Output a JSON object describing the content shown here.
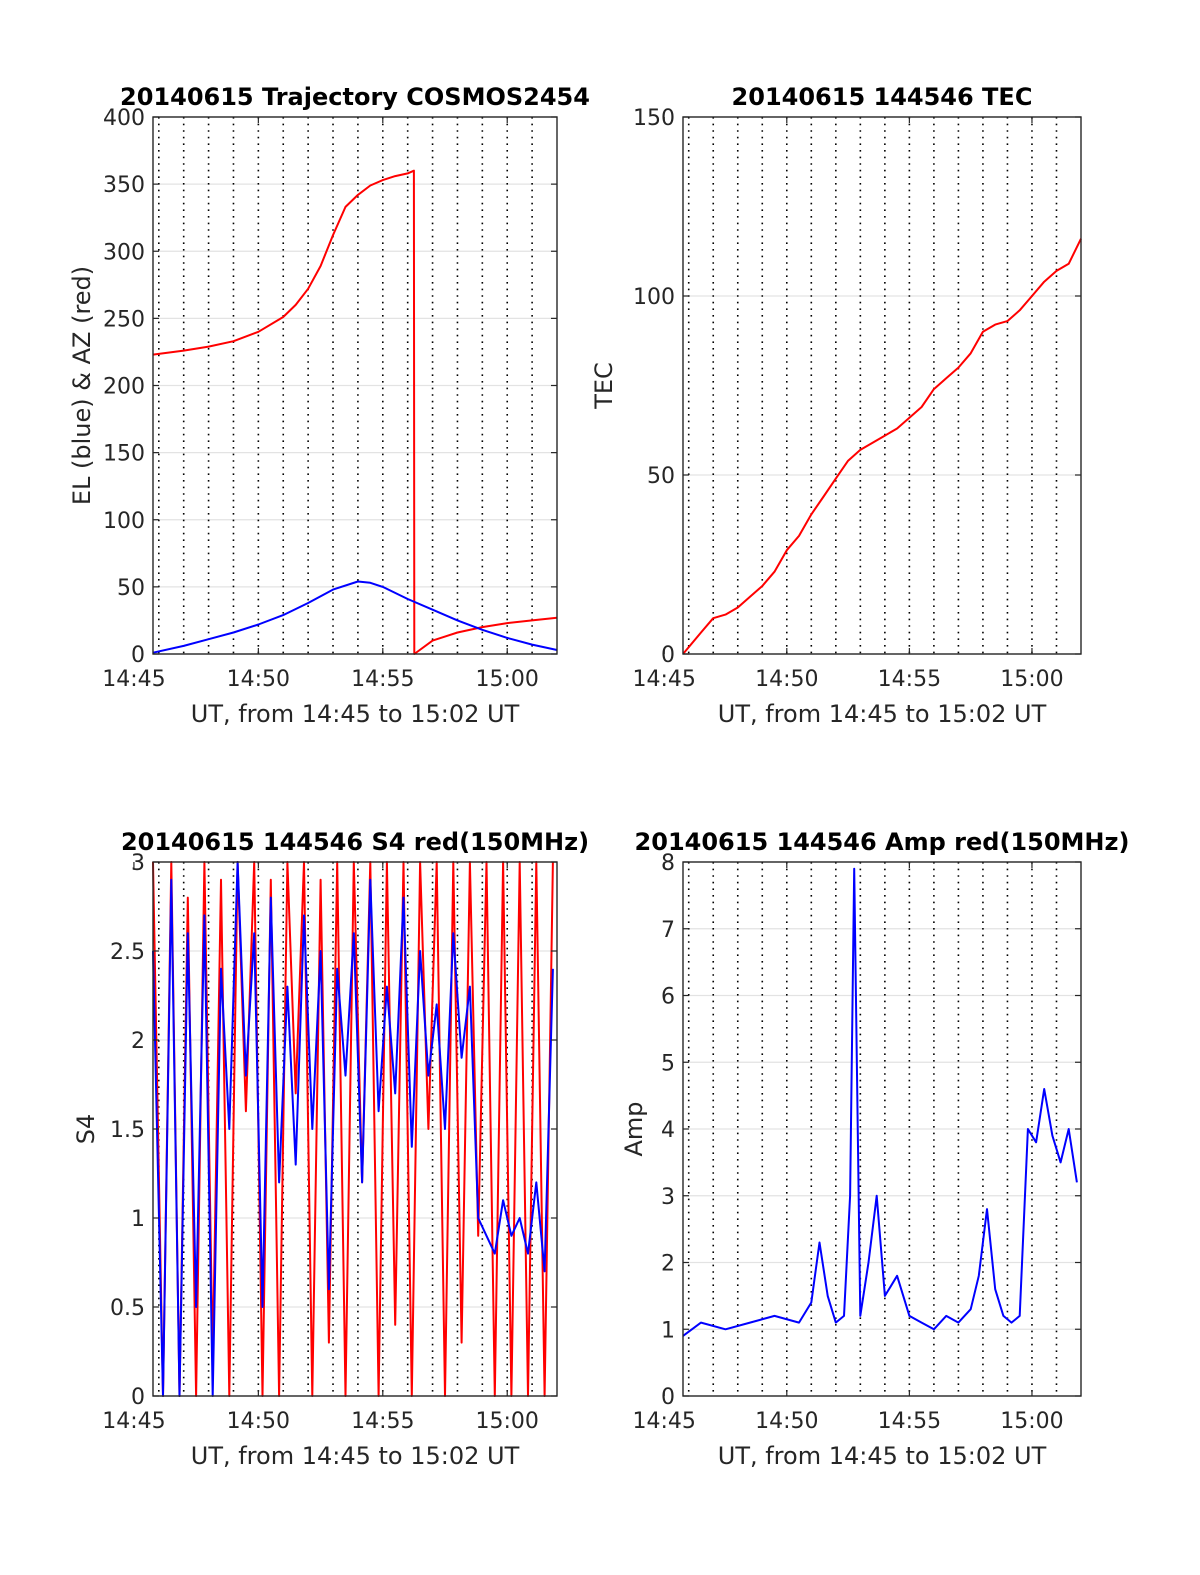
{
  "chart_data": [
    {
      "type": "line",
      "title": "20140615 Trajectory COSMOS2454",
      "xlabel": "UT, from 14:45 to 15:02 UT",
      "ylabel": "EL (blue) & AZ (red)",
      "xlim": [
        "14:45:46",
        "15:02:00"
      ],
      "ylim": [
        0,
        400
      ],
      "xticks": [
        "14:45",
        "14:50",
        "14:55",
        "15:00"
      ],
      "yticks": [
        0,
        50,
        100,
        150,
        200,
        250,
        300,
        350,
        400
      ],
      "grid": true,
      "series": [
        {
          "color": "#ff0000",
          "x": [
            "14:45:46",
            "14:47:00",
            "14:48:00",
            "14:49:00",
            "14:50:00",
            "14:51:00",
            "14:51:30",
            "14:52:00",
            "14:52:30",
            "14:53:00",
            "14:53:30",
            "14:54:00",
            "14:54:30",
            "14:55:00",
            "14:55:30",
            "14:56:00",
            "14:56:15",
            "14:56:16",
            "14:57:00",
            "14:58:00",
            "14:59:00",
            "15:00:00",
            "15:01:00",
            "15:02:00"
          ],
          "values": [
            223,
            226,
            229,
            233,
            240,
            251,
            260,
            272,
            289,
            312,
            333,
            342,
            349,
            353,
            356,
            358,
            360,
            0,
            10,
            16,
            20,
            23,
            25,
            27
          ]
        },
        {
          "color": "#0000ff",
          "x": [
            "14:45:46",
            "14:47:00",
            "14:48:00",
            "14:49:00",
            "14:50:00",
            "14:51:00",
            "14:52:00",
            "14:53:00",
            "14:54:00",
            "14:54:30",
            "14:55:00",
            "14:56:00",
            "14:57:00",
            "14:58:00",
            "14:59:00",
            "15:00:00",
            "15:01:00",
            "15:02:00"
          ],
          "values": [
            1,
            6,
            11,
            16,
            22,
            29,
            38,
            48,
            54,
            53,
            50,
            41,
            33,
            25,
            18,
            12,
            7,
            3
          ]
        }
      ]
    },
    {
      "type": "line",
      "title": "20140615 144546 TEC",
      "xlabel": "UT, from 14:45 to 15:02 UT",
      "ylabel": "TEC",
      "xlim": [
        "14:45:46",
        "15:02:00"
      ],
      "ylim": [
        0,
        150
      ],
      "xticks": [
        "14:45",
        "14:50",
        "14:55",
        "15:00"
      ],
      "yticks": [
        0,
        50,
        100,
        150
      ],
      "grid": true,
      "series": [
        {
          "color": "#ff0000",
          "x": [
            "14:45:46",
            "14:46:30",
            "14:47:00",
            "14:47:30",
            "14:48:00",
            "14:48:30",
            "14:49:00",
            "14:49:30",
            "14:50:00",
            "14:50:30",
            "14:51:00",
            "14:51:30",
            "14:52:00",
            "14:52:30",
            "14:53:00",
            "14:53:30",
            "14:54:00",
            "14:54:30",
            "14:55:00",
            "14:55:30",
            "14:56:00",
            "14:56:30",
            "14:57:00",
            "14:57:30",
            "14:58:00",
            "14:58:30",
            "14:59:00",
            "14:59:30",
            "15:00:00",
            "15:00:30",
            "15:01:00",
            "15:01:30",
            "15:02:00"
          ],
          "values": [
            0,
            6,
            10,
            11,
            13,
            16,
            19,
            23,
            29,
            33,
            39,
            44,
            49,
            54,
            57,
            59,
            61,
            63,
            66,
            69,
            74,
            77,
            80,
            84,
            90,
            92,
            93,
            96,
            100,
            104,
            107,
            109,
            116
          ]
        }
      ]
    },
    {
      "type": "line",
      "title": "20140615 144546 S4 red(150MHz)",
      "xlabel": "UT, from 14:45 to 15:02 UT",
      "ylabel": "S4",
      "xlim": [
        "14:45:46",
        "15:02:00"
      ],
      "ylim": [
        0,
        3
      ],
      "xticks": [
        "14:45",
        "14:50",
        "14:55",
        "15:00"
      ],
      "yticks": [
        0,
        0.5,
        1,
        1.5,
        2,
        2.5,
        3
      ],
      "grid": true,
      "series": [
        {
          "color": "#ff0000",
          "x": [
            "14:45:46",
            "14:46:10",
            "14:46:30",
            "14:46:50",
            "14:47:10",
            "14:47:30",
            "14:47:50",
            "14:48:10",
            "14:48:30",
            "14:48:50",
            "14:49:10",
            "14:49:30",
            "14:49:50",
            "14:50:10",
            "14:50:30",
            "14:50:50",
            "14:51:10",
            "14:51:30",
            "14:51:50",
            "14:52:10",
            "14:52:30",
            "14:52:50",
            "14:53:10",
            "14:53:30",
            "14:53:50",
            "14:54:10",
            "14:54:30",
            "14:54:50",
            "14:55:10",
            "14:55:30",
            "14:55:50",
            "14:56:10",
            "14:56:30",
            "14:56:50",
            "14:57:10",
            "14:57:30",
            "14:57:50",
            "14:58:10",
            "14:58:30",
            "14:58:50",
            "14:59:10",
            "14:59:30",
            "14:59:50",
            "15:00:10",
            "15:00:30",
            "15:00:50",
            "15:01:10",
            "15:01:30",
            "15:01:50"
          ],
          "values": [
            3.0,
            0.0,
            3.0,
            0.0,
            2.8,
            0.0,
            3.0,
            0.2,
            2.9,
            0.0,
            3.0,
            1.6,
            3.0,
            0.0,
            2.9,
            0.0,
            3.0,
            1.7,
            3.0,
            0.0,
            2.9,
            0.3,
            3.0,
            0.0,
            3.0,
            1.2,
            3.0,
            0.0,
            3.0,
            0.4,
            3.0,
            0.0,
            3.0,
            1.5,
            3.0,
            0.0,
            3.0,
            0.3,
            3.0,
            0.9,
            3.0,
            0.0,
            3.0,
            0.0,
            3.0,
            0.0,
            3.0,
            0.0,
            3.0
          ]
        },
        {
          "color": "#0000ff",
          "x": [
            "14:45:46",
            "14:46:10",
            "14:46:30",
            "14:46:50",
            "14:47:10",
            "14:47:30",
            "14:47:50",
            "14:48:10",
            "14:48:30",
            "14:48:50",
            "14:49:10",
            "14:49:30",
            "14:49:50",
            "14:50:10",
            "14:50:30",
            "14:50:50",
            "14:51:10",
            "14:51:30",
            "14:51:50",
            "14:52:10",
            "14:52:30",
            "14:52:50",
            "14:53:10",
            "14:53:30",
            "14:53:50",
            "14:54:10",
            "14:54:30",
            "14:54:50",
            "14:55:10",
            "14:55:30",
            "14:55:50",
            "14:56:10",
            "14:56:30",
            "14:56:50",
            "14:57:10",
            "14:57:30",
            "14:57:50",
            "14:58:10",
            "14:58:30",
            "14:58:50",
            "14:59:10",
            "14:59:30",
            "14:59:50",
            "15:00:10",
            "15:00:30",
            "15:00:50",
            "15:01:10",
            "15:01:30",
            "15:01:50"
          ],
          "values": [
            2.5,
            0.0,
            2.9,
            0.0,
            2.6,
            0.5,
            2.7,
            0.0,
            2.4,
            1.5,
            3.0,
            1.8,
            2.6,
            0.5,
            2.8,
            1.2,
            2.3,
            1.3,
            2.7,
            1.5,
            2.5,
            0.6,
            2.4,
            1.8,
            2.6,
            1.2,
            2.9,
            1.6,
            2.3,
            1.7,
            2.8,
            1.4,
            2.5,
            1.8,
            2.2,
            1.5,
            2.6,
            1.9,
            2.3,
            1.0,
            0.9,
            0.8,
            1.1,
            0.9,
            1.0,
            0.8,
            1.2,
            0.7,
            2.4
          ]
        }
      ]
    },
    {
      "type": "line",
      "title": "20140615 144546 Amp red(150MHz)",
      "xlabel": "UT, from 14:45 to 15:02 UT",
      "ylabel": "Amp",
      "xlim": [
        "14:45:46",
        "15:02:00"
      ],
      "ylim": [
        0,
        8
      ],
      "xticks": [
        "14:45",
        "14:50",
        "14:55",
        "15:00"
      ],
      "yticks": [
        0,
        1,
        2,
        3,
        4,
        5,
        6,
        7,
        8
      ],
      "grid": true,
      "series": [
        {
          "color": "#0000ff",
          "x": [
            "14:45:46",
            "14:46:30",
            "14:47:30",
            "14:48:30",
            "14:49:30",
            "14:50:30",
            "14:51:00",
            "14:51:20",
            "14:51:40",
            "14:52:00",
            "14:52:20",
            "14:52:35",
            "14:52:45",
            "14:53:00",
            "14:53:20",
            "14:53:40",
            "14:54:00",
            "14:54:30",
            "14:55:00",
            "14:55:30",
            "14:56:00",
            "14:56:30",
            "14:57:00",
            "14:57:30",
            "14:57:50",
            "14:58:10",
            "14:58:30",
            "14:58:50",
            "14:59:10",
            "14:59:30",
            "14:59:50",
            "15:00:10",
            "15:00:30",
            "15:00:50",
            "15:01:10",
            "15:01:30",
            "15:01:50"
          ],
          "values": [
            0.9,
            1.1,
            1.0,
            1.1,
            1.2,
            1.1,
            1.4,
            2.3,
            1.5,
            1.1,
            1.2,
            3.0,
            7.9,
            1.2,
            2.0,
            3.0,
            1.5,
            1.8,
            1.2,
            1.1,
            1.0,
            1.2,
            1.1,
            1.3,
            1.8,
            2.8,
            1.6,
            1.2,
            1.1,
            1.2,
            4.0,
            3.8,
            4.6,
            3.9,
            3.5,
            4.0,
            3.2
          ]
        }
      ]
    }
  ]
}
